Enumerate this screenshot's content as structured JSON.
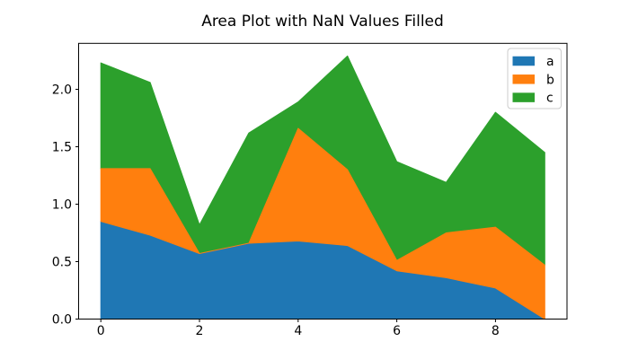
{
  "chart_data": {
    "type": "area",
    "stacked": true,
    "title": "Area Plot with NaN Values Filled",
    "xlabel": "",
    "ylabel": "",
    "grid": false,
    "x": [
      0,
      1,
      2,
      3,
      4,
      5,
      6,
      7,
      8,
      9
    ],
    "series": [
      {
        "name": "a",
        "color": "#1f77b4",
        "values": [
          0.85,
          0.73,
          0.57,
          0.66,
          0.68,
          0.64,
          0.42,
          0.36,
          0.27,
          0.0
        ]
      },
      {
        "name": "b",
        "color": "#ff7f0e",
        "values": [
          0.46,
          0.58,
          0.0,
          0.0,
          0.98,
          0.66,
          0.09,
          0.39,
          0.53,
          0.47
        ]
      },
      {
        "name": "c",
        "color": "#2ca02c",
        "values": [
          0.92,
          0.75,
          0.25,
          0.96,
          0.23,
          0.99,
          0.86,
          0.44,
          1.0,
          0.98
        ]
      }
    ],
    "xlim": [
      -0.45,
      9.45
    ],
    "ylim": [
      0,
      2.4
    ],
    "xticks": {
      "values": [
        0,
        2,
        4,
        6,
        8
      ],
      "labels": [
        "0",
        "2",
        "4",
        "6",
        "8"
      ]
    },
    "yticks": {
      "values": [
        0.0,
        0.5,
        1.0,
        1.5,
        2.0
      ],
      "labels": [
        "0.0",
        "0.5",
        "1.0",
        "1.5",
        "2.0"
      ]
    },
    "legend": {
      "position": "upper right",
      "entries": [
        "a",
        "b",
        "c"
      ]
    }
  },
  "style": {
    "axis_color": "#000000",
    "text_color": "#000000",
    "background": "#ffffff",
    "legend_border": "#cccccc",
    "legend_background": "#ffffff"
  }
}
